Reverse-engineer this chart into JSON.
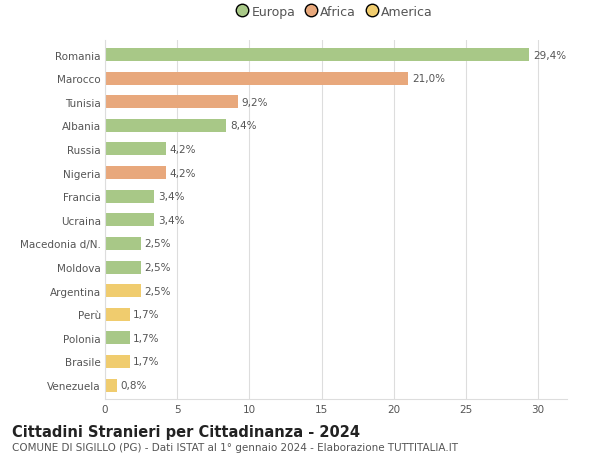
{
  "countries": [
    "Romania",
    "Marocco",
    "Tunisia",
    "Albania",
    "Russia",
    "Nigeria",
    "Francia",
    "Ucraina",
    "Macedonia d/N.",
    "Moldova",
    "Argentina",
    "Perù",
    "Polonia",
    "Brasile",
    "Venezuela"
  ],
  "values": [
    29.4,
    21.0,
    9.2,
    8.4,
    4.2,
    4.2,
    3.4,
    3.4,
    2.5,
    2.5,
    2.5,
    1.7,
    1.7,
    1.7,
    0.8
  ],
  "continents": [
    "Europa",
    "Africa",
    "Africa",
    "Europa",
    "Europa",
    "Africa",
    "Europa",
    "Europa",
    "Europa",
    "Europa",
    "America",
    "America",
    "Europa",
    "America",
    "America"
  ],
  "colors": {
    "Europa": "#a8c887",
    "Africa": "#e8a87c",
    "America": "#f0cc6e"
  },
  "legend_labels": [
    "Europa",
    "Africa",
    "America"
  ],
  "legend_colors": [
    "#a8c887",
    "#e8a87c",
    "#f0cc6e"
  ],
  "title": "Cittadini Stranieri per Cittadinanza - 2024",
  "subtitle": "COMUNE DI SIGILLO (PG) - Dati ISTAT al 1° gennaio 2024 - Elaborazione TUTTITALIA.IT",
  "xlim": [
    0,
    32
  ],
  "xticks": [
    0,
    5,
    10,
    15,
    20,
    25,
    30
  ],
  "background_color": "#ffffff",
  "grid_color": "#dddddd",
  "bar_height": 0.55,
  "label_fontsize": 7.5,
  "title_fontsize": 10.5,
  "subtitle_fontsize": 7.5,
  "tick_fontsize": 7.5,
  "legend_fontsize": 9
}
